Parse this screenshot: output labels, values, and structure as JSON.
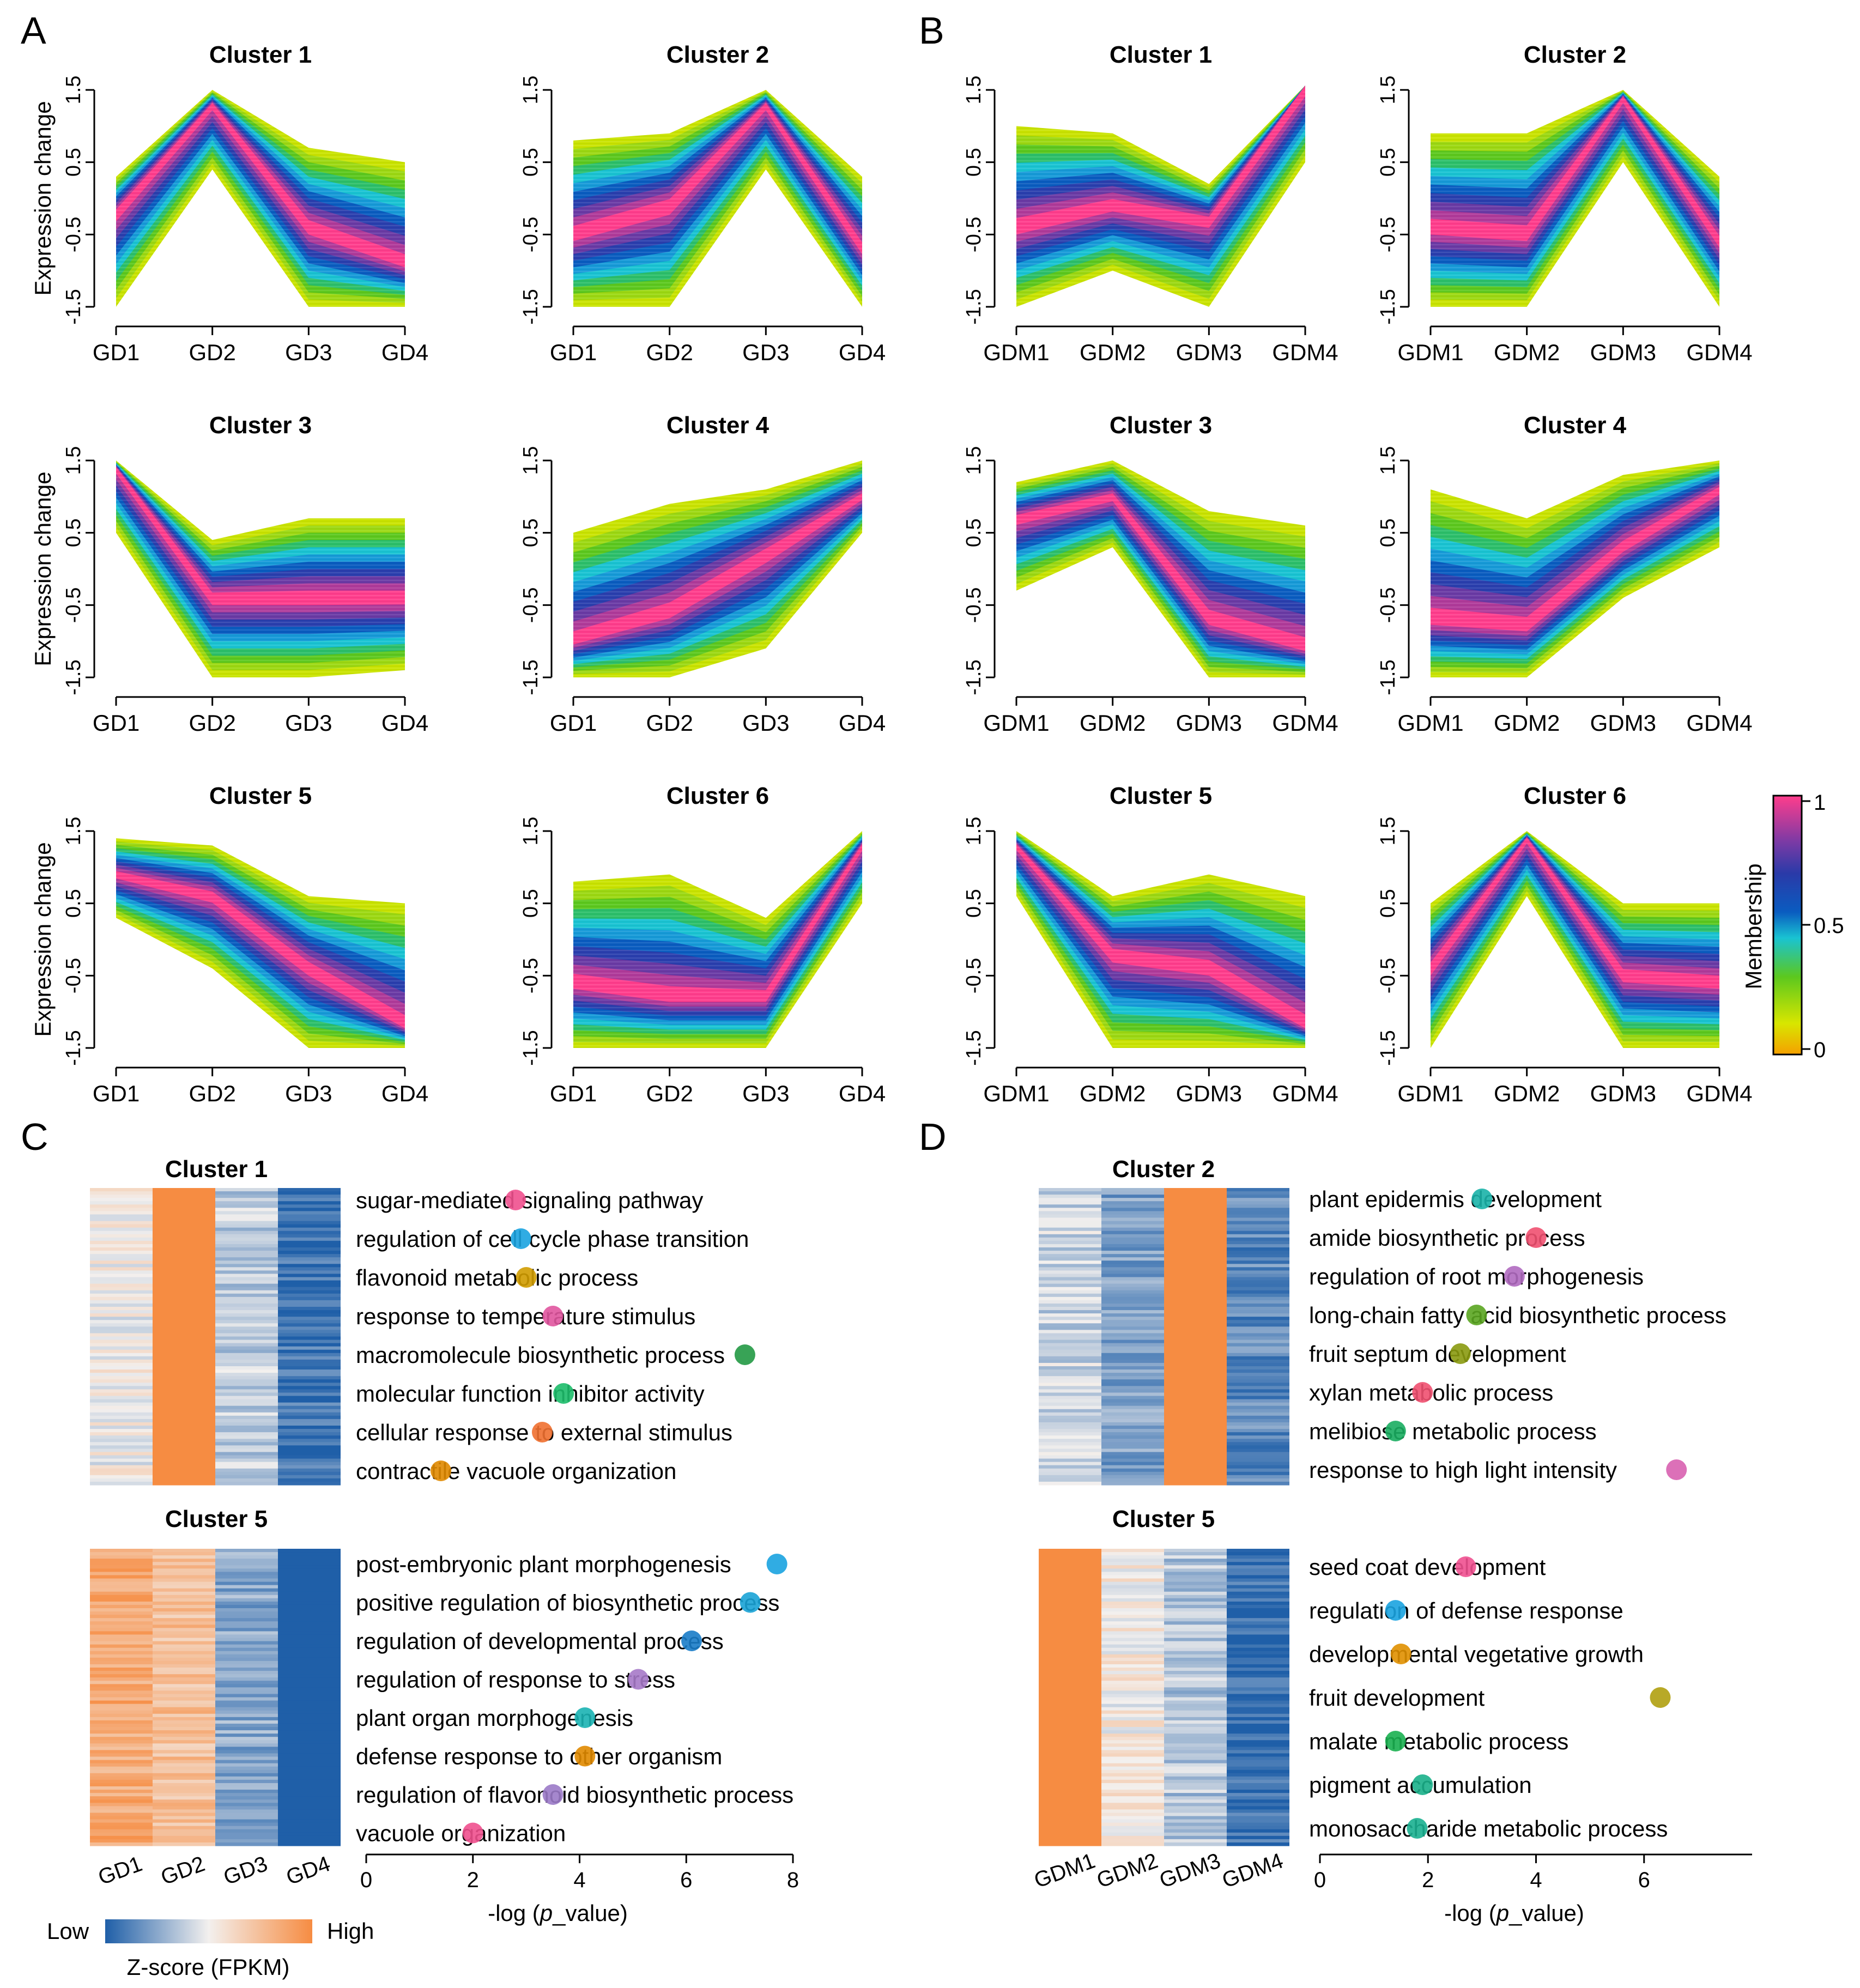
{
  "panels": {
    "A": "A",
    "B": "B",
    "C": "C",
    "D": "D"
  },
  "colors": {
    "membership_gradient": [
      "#f5a623",
      "#d8e600",
      "#5cc81e",
      "#19c3d2",
      "#0a5cc0",
      "#6a3aa5",
      "#ff3d8c"
    ],
    "heat_low": "#1f5fa8",
    "heat_mid": "#f3f0ee",
    "heat_high": "#f68c42"
  },
  "chart_data": [
    {
      "type": "line",
      "panel": "A",
      "ylabel": "Expression change",
      "yticks": [
        "1.5",
        "0.5",
        "-0.5",
        "-1.5"
      ],
      "ylim": [
        -1.5,
        1.5
      ],
      "x": [
        "GD1",
        "GD2",
        "GD3",
        "GD4"
      ],
      "clusters": [
        {
          "title": "Cluster 1",
          "center": [
            -0.2,
            1.3,
            -0.4,
            -0.9
          ],
          "top": [
            0.3,
            1.5,
            0.7,
            0.5
          ],
          "bottom": [
            -1.5,
            0.4,
            -1.5,
            -1.5
          ]
        },
        {
          "title": "Cluster 2",
          "center": [
            -0.5,
            -0.1,
            1.3,
            -0.7
          ],
          "top": [
            0.8,
            0.9,
            1.5,
            0.3
          ],
          "bottom": [
            -1.5,
            -1.5,
            0.4,
            -1.5
          ]
        },
        {
          "title": "Cluster 3",
          "center": [
            1.4,
            -0.4,
            -0.4,
            -0.4
          ],
          "top": [
            1.5,
            0.4,
            0.7,
            0.7
          ],
          "bottom": [
            0.5,
            -1.5,
            -1.5,
            -1.4
          ]
        },
        {
          "title": "Cluster 4",
          "center": [
            -1.0,
            -0.6,
            0.2,
            1.0
          ],
          "top": [
            0.5,
            0.9,
            1.1,
            1.5
          ],
          "bottom": [
            -1.5,
            -1.5,
            -1.1,
            0.5
          ]
        },
        {
          "title": "Cluster 5",
          "center": [
            0.9,
            0.6,
            -0.4,
            -1.2
          ],
          "top": [
            1.4,
            1.3,
            0.6,
            0.5
          ],
          "bottom": [
            0.3,
            -0.4,
            -1.5,
            -1.5
          ]
        },
        {
          "title": "Cluster 6",
          "center": [
            -0.6,
            -0.8,
            -0.8,
            1.3
          ],
          "top": [
            0.8,
            0.9,
            0.3,
            1.5
          ],
          "bottom": [
            -1.5,
            -1.5,
            -1.5,
            0.5
          ]
        }
      ]
    },
    {
      "type": "line",
      "panel": "B",
      "ylabel": "",
      "yticks": [
        "1.5",
        "0.5",
        "-0.5",
        "-1.5"
      ],
      "ylim": [
        -1.5,
        1.5
      ],
      "x": [
        "GDM1",
        "GDM2",
        "GDM3",
        "GDM4"
      ],
      "clusters": [
        {
          "title": "Cluster 1",
          "center": [
            -0.4,
            -0.1,
            -0.3,
            1.5
          ],
          "top": [
            1.0,
            0.9,
            0.2,
            1.5
          ],
          "bottom": [
            -1.5,
            -1.0,
            -1.5,
            0.5
          ]
        },
        {
          "title": "Cluster 2",
          "center": [
            -0.4,
            -0.5,
            1.4,
            -0.6
          ],
          "top": [
            0.9,
            0.9,
            1.5,
            0.3
          ],
          "bottom": [
            -1.5,
            -1.5,
            0.5,
            -1.5
          ]
        },
        {
          "title": "Cluster 3",
          "center": [
            0.7,
            1.0,
            -0.7,
            -1.1
          ],
          "top": [
            1.2,
            1.5,
            0.8,
            0.6
          ],
          "bottom": [
            -0.3,
            0.3,
            -1.5,
            -1.5
          ]
        },
        {
          "title": "Cluster 4",
          "center": [
            -0.7,
            -0.8,
            0.3,
            1.1
          ],
          "top": [
            1.1,
            0.7,
            1.3,
            1.5
          ],
          "bottom": [
            -1.5,
            -1.5,
            -0.4,
            0.3
          ]
        },
        {
          "title": "Cluster 5",
          "center": [
            1.3,
            -0.2,
            -0.4,
            -1.2
          ],
          "top": [
            1.5,
            0.6,
            0.9,
            0.6
          ],
          "bottom": [
            0.6,
            -1.5,
            -1.5,
            -1.5
          ]
        },
        {
          "title": "Cluster 6",
          "center": [
            -0.4,
            1.4,
            -0.5,
            -0.6
          ],
          "top": [
            0.5,
            1.5,
            0.5,
            0.5
          ],
          "bottom": [
            -1.5,
            0.6,
            -1.5,
            -1.5
          ]
        }
      ]
    },
    {
      "type": "heatmap",
      "panel": "C",
      "columns": [
        "GD1",
        "GD2",
        "GD3",
        "GD4"
      ],
      "cluster_1_title": "Cluster 1",
      "cluster_1_zscores": [
        0.0,
        1.0,
        -0.25,
        -0.85
      ],
      "cluster_5_title": "Cluster 5",
      "cluster_5_zscores": [
        0.7,
        0.5,
        -0.5,
        -1.0
      ],
      "legend": {
        "low": "Low",
        "high": "High",
        "title": "Z-score (FPKM)"
      }
    },
    {
      "type": "heatmap",
      "panel": "D",
      "columns": [
        "GDM1",
        "GDM2",
        "GDM3",
        "GDM4"
      ],
      "cluster_2_title": "Cluster 2",
      "cluster_2_zscores": [
        -0.2,
        -0.55,
        1.0,
        -0.7
      ],
      "cluster_5_title": "Cluster 5",
      "cluster_5_zscores": [
        1.0,
        0.05,
        -0.3,
        -0.9
      ]
    },
    {
      "type": "scatter",
      "panel": "C",
      "xlabel_prefix": "-log (",
      "xlabel_italic": "p",
      "xlabel_suffix": "_value)",
      "xlim": [
        0,
        8
      ],
      "xticks": [
        "0",
        "2",
        "4",
        "6",
        "8"
      ],
      "cluster_1_terms": [
        {
          "term": "sugar-mediated signaling pathway",
          "x": 2.8,
          "color": "#f0508e"
        },
        {
          "term": "regulation of cell cycle phase transition",
          "x": 2.9,
          "color": "#1aa3e0"
        },
        {
          "term": "flavonoid metabolic process",
          "x": 3.0,
          "color": "#d09c00"
        },
        {
          "term": "response to temperature stimulus",
          "x": 3.5,
          "color": "#e0559e"
        },
        {
          "term": "macromolecule biosynthetic process",
          "x": 7.1,
          "color": "#229944"
        },
        {
          "term": "molecular function inhibitor activity",
          "x": 3.7,
          "color": "#1dbd6a"
        },
        {
          "term": "cellular response to external stimulus",
          "x": 3.3,
          "color": "#f07030"
        },
        {
          "term": "contractile vacuole organization",
          "x": 1.4,
          "color": "#e08a00"
        }
      ],
      "cluster_5_terms": [
        {
          "term": "post-embryonic plant morphogenesis",
          "x": 7.7,
          "color": "#1aa3e0"
        },
        {
          "term": "positive regulation of biosynthetic process",
          "x": 7.2,
          "color": "#1aa3d6"
        },
        {
          "term": "regulation of developmental process",
          "x": 6.1,
          "color": "#1a7cc8"
        },
        {
          "term": "regulation of response to stress",
          "x": 5.1,
          "color": "#a679c8"
        },
        {
          "term": "plant organ morphogenesis",
          "x": 4.1,
          "color": "#1ab3b3"
        },
        {
          "term": "defense response to other organism",
          "x": 4.1,
          "color": "#e08a00"
        },
        {
          "term": "regulation of flavonoid biosynthetic process",
          "x": 3.5,
          "color": "#9b7ac8"
        },
        {
          "term": "vacuole organization",
          "x": 2.0,
          "color": "#f0508e"
        }
      ]
    },
    {
      "type": "scatter",
      "panel": "D",
      "xlabel_prefix": "-log (",
      "xlabel_italic": "p",
      "xlabel_suffix": "_value)",
      "xlim": [
        0,
        8
      ],
      "xticks": [
        "0",
        "2",
        "4",
        "6"
      ],
      "cluster_2_terms": [
        {
          "term": "plant epidermis development",
          "x": 3.0,
          "color": "#1ab3a8"
        },
        {
          "term": "amide biosynthetic process",
          "x": 4.0,
          "color": "#f05070"
        },
        {
          "term": "regulation of root morphogenesis",
          "x": 3.6,
          "color": "#b06ac0"
        },
        {
          "term": "long-chain fatty acid biosynthetic process",
          "x": 2.9,
          "color": "#5aa520"
        },
        {
          "term": "fruit septum development",
          "x": 2.6,
          "color": "#8a9a10"
        },
        {
          "term": "xylan metabolic process",
          "x": 1.9,
          "color": "#f05070"
        },
        {
          "term": "melibiose metabolic process",
          "x": 1.4,
          "color": "#1aad60"
        },
        {
          "term": "response to high light intensity",
          "x": 6.6,
          "color": "#d860b0"
        }
      ],
      "cluster_5_terms": [
        {
          "term": "seed coat development",
          "x": 2.7,
          "color": "#f05090"
        },
        {
          "term": "regulation of defense response",
          "x": 1.4,
          "color": "#1aa3e0"
        },
        {
          "term": "developmental vegetative growth",
          "x": 1.5,
          "color": "#e09000"
        },
        {
          "term": "fruit development",
          "x": 6.3,
          "color": "#b0a010"
        },
        {
          "term": "malate metabolic process",
          "x": 1.4,
          "color": "#1ab050"
        },
        {
          "term": "pigment accumulation",
          "x": 1.9,
          "color": "#1ab08a"
        },
        {
          "term": "monosaccharide metabolic process",
          "x": 1.8,
          "color": "#1ab090"
        }
      ]
    },
    {
      "type": "colorbar",
      "title": "Membership",
      "ticks": [
        "1",
        "0.5",
        "0"
      ]
    }
  ]
}
